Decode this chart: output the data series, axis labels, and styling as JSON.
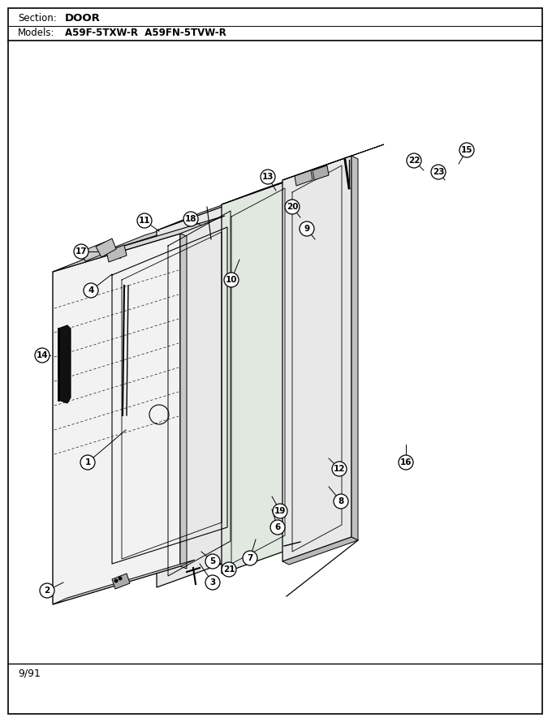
{
  "title_section": "Section:",
  "title_section_val": "DOOR",
  "title_models": "Models:",
  "title_models_val": "A59F-5TXW-R  A59FN-5TVW-R",
  "date_code": "9/91",
  "bg_color": "#ffffff",
  "fig_width": 6.8,
  "fig_height": 8.9,
  "dpi": 100
}
